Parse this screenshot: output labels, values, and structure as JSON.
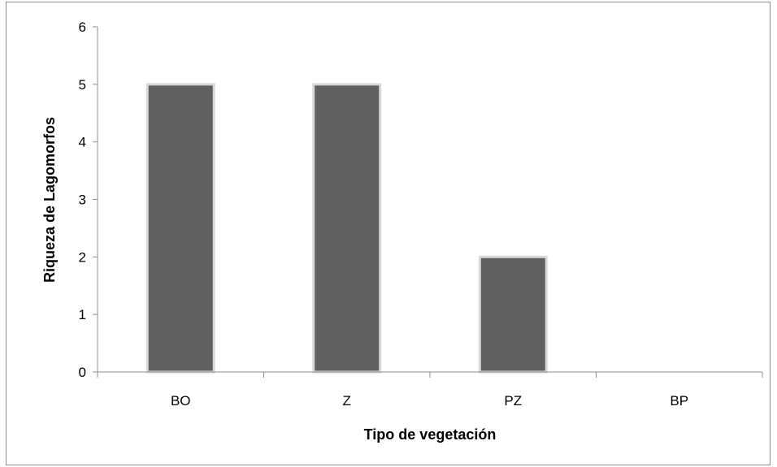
{
  "chart_data": {
    "type": "bar",
    "title": "",
    "xlabel": "Tipo de vegetación",
    "ylabel": "Riqueza de Lagomorfos",
    "categories": [
      "BO",
      "Z",
      "PZ",
      "BP"
    ],
    "values": [
      5,
      5,
      2,
      0
    ],
    "ylim": [
      0,
      6
    ],
    "yticks": [
      0,
      1,
      2,
      3,
      4,
      5,
      6
    ],
    "grid": false,
    "legend": "none",
    "colors": {
      "bar_fill": "#606060",
      "bar_border": "#d9d9d9",
      "axis": "#8c8c8c",
      "frame": "#8c8c8c"
    }
  }
}
